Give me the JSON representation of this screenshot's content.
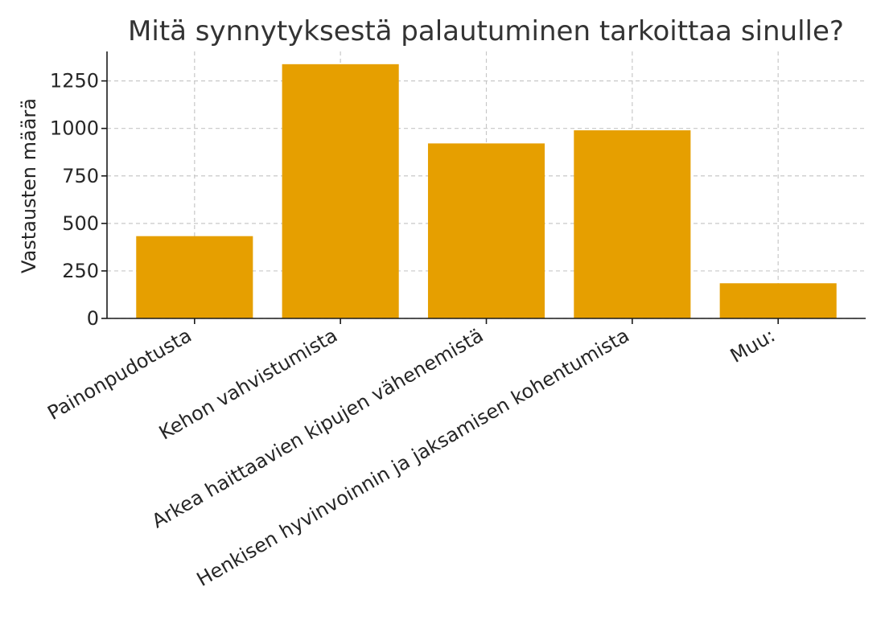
{
  "chart_data": {
    "type": "bar",
    "title": "Mitä synnytyksestä palautuminen tarkoittaa sinulle?",
    "xlabel": "",
    "ylabel": "Vastausten määrä",
    "categories": [
      "Painonpudotusta",
      "Kehon vahvistumista",
      "Arkea haittaavien kipujen vähenemistä",
      "Henkisen hyvinvoinnin ja jaksamisen kohentumista",
      "Muu:"
    ],
    "values": [
      433,
      1338,
      921,
      990,
      185
    ],
    "ylim": [
      0,
      1405
    ],
    "yticks": [
      0,
      250,
      500,
      750,
      1000,
      1250
    ],
    "grid": true,
    "bar_color": "#E69F00"
  }
}
